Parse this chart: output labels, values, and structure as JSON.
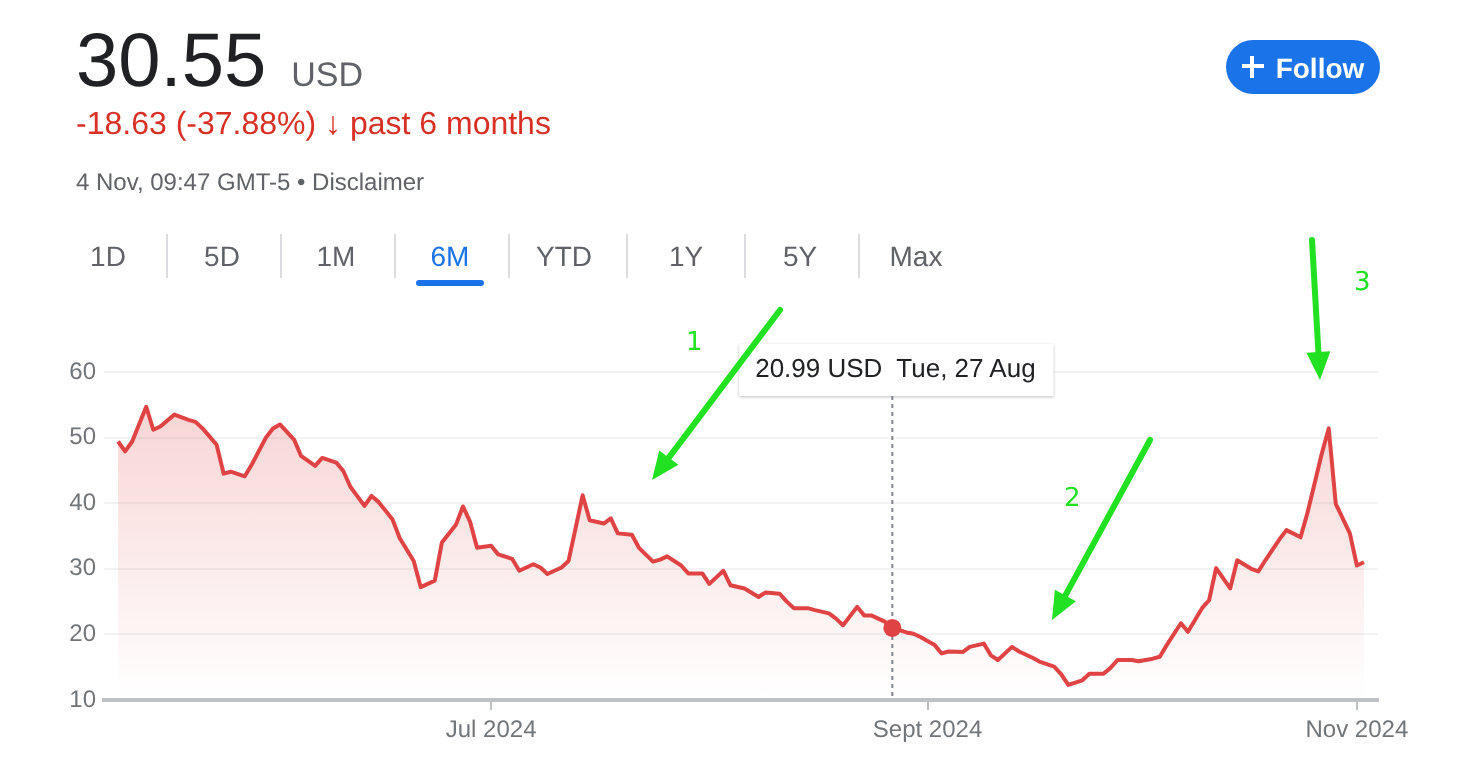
{
  "chart_data": {
    "type": "area",
    "title": "30.55 USD",
    "subtitle": "-18.63 (-37.88%) ↓ past 6 months",
    "color": "#e04343",
    "marker": "none",
    "grid": "y",
    "x": [
      "2024-05-09",
      "2024-05-10",
      "2024-05-11",
      "2024-05-13",
      "2024-05-14",
      "2024-05-15",
      "2024-05-17",
      "2024-05-19",
      "2024-05-20",
      "2024-05-21",
      "2024-05-23",
      "2024-05-24",
      "2024-05-25",
      "2024-05-27",
      "2024-05-28",
      "2024-05-30",
      "2024-05-31",
      "2024-06-01",
      "2024-06-03",
      "2024-06-04",
      "2024-06-06",
      "2024-06-07",
      "2024-06-09",
      "2024-06-10",
      "2024-06-11",
      "2024-06-13",
      "2024-06-14",
      "2024-06-15",
      "2024-06-17",
      "2024-06-18",
      "2024-06-20",
      "2024-06-21",
      "2024-06-23",
      "2024-06-24",
      "2024-06-26",
      "2024-06-27",
      "2024-06-28",
      "2024-06-29",
      "2024-07-01",
      "2024-07-02",
      "2024-07-04",
      "2024-07-05",
      "2024-07-07",
      "2024-07-08",
      "2024-07-09",
      "2024-07-11",
      "2024-07-12",
      "2024-07-14",
      "2024-07-15",
      "2024-07-17",
      "2024-07-18",
      "2024-07-19",
      "2024-07-21",
      "2024-07-22",
      "2024-07-24",
      "2024-07-25",
      "2024-07-26",
      "2024-07-28",
      "2024-07-29",
      "2024-07-31",
      "2024-08-01",
      "2024-08-03",
      "2024-08-04",
      "2024-08-06",
      "2024-08-08",
      "2024-08-09",
      "2024-08-11",
      "2024-08-12",
      "2024-08-13",
      "2024-08-15",
      "2024-08-16",
      "2024-08-18",
      "2024-08-19",
      "2024-08-20",
      "2024-08-22",
      "2024-08-23",
      "2024-08-24",
      "2024-08-26",
      "2024-08-27",
      "2024-08-29",
      "2024-08-30",
      "2024-08-31",
      "2024-09-02",
      "2024-09-03",
      "2024-09-04",
      "2024-09-06",
      "2024-09-07",
      "2024-09-09",
      "2024-09-10",
      "2024-09-11",
      "2024-09-13",
      "2024-09-14",
      "2024-09-16",
      "2024-09-17",
      "2024-09-19",
      "2024-09-20",
      "2024-09-21",
      "2024-09-23",
      "2024-09-24",
      "2024-09-26",
      "2024-09-27",
      "2024-09-28",
      "2024-09-30",
      "2024-10-01",
      "2024-10-03",
      "2024-10-04",
      "2024-10-05",
      "2024-10-07",
      "2024-10-08",
      "2024-10-10",
      "2024-10-11",
      "2024-10-12",
      "2024-10-14",
      "2024-10-15",
      "2024-10-17",
      "2024-10-18",
      "2024-10-19",
      "2024-10-21",
      "2024-10-22",
      "2024-10-24",
      "2024-10-25",
      "2024-10-27",
      "2024-10-28",
      "2024-10-29",
      "2024-10-31",
      "2024-11-01",
      "2024-11-02"
    ],
    "values": [
      49.4,
      47.9,
      49.4,
      54.7,
      51.2,
      51.7,
      53.5,
      52.7,
      52.4,
      51.4,
      48.9,
      44.5,
      44.8,
      44.1,
      45.9,
      50,
      51.4,
      52,
      49.7,
      47.2,
      45.7,
      46.9,
      46.2,
      44.9,
      42.5,
      39.6,
      41.1,
      40.2,
      37.5,
      34.7,
      31.2,
      27.2,
      28.2,
      34,
      36.7,
      39.5,
      37.2,
      33.2,
      33.5,
      32.2,
      31.5,
      29.7,
      30.7,
      30.2,
      29.2,
      30.2,
      31.2,
      41.2,
      37.4,
      36.9,
      37.7,
      35.4,
      35.2,
      33.2,
      31.1,
      31.4,
      31.9,
      30.5,
      29.3,
      29.3,
      27.7,
      29.7,
      27.5,
      27,
      25.7,
      26.4,
      26.2,
      25,
      24,
      24,
      23.7,
      23.2,
      22.4,
      21.4,
      24.2,
      22.9,
      22.9,
      21.9,
      20.99,
      20.3,
      20.1,
      19.6,
      18.4,
      17.1,
      17.4,
      17.3,
      18.1,
      18.6,
      16.8,
      16.1,
      18.1,
      17.4,
      16.4,
      15.8,
      15.1,
      13.9,
      12.3,
      13,
      14,
      14,
      14.9,
      16.1,
      16.1,
      15.9,
      16.3,
      16.6,
      18.4,
      21.7,
      20.4,
      24,
      25.2,
      30.1,
      27,
      31.3,
      30,
      29.6,
      31.3,
      34.5,
      35.9,
      34.8,
      38.6,
      47.5,
      51.4,
      39.9,
      35.4,
      30.5,
      31
    ],
    "xlim": [
      "2024-05-07",
      "2024-11-04"
    ],
    "xticks": [
      {
        "value": "2024-07-01",
        "label": "Jul 2024"
      },
      {
        "value": "2024-09-01",
        "label": "Sept 2024"
      },
      {
        "value": "2024-11-01",
        "label": "Nov 2024"
      }
    ],
    "ylim": [
      10,
      60
    ],
    "yticks": [
      10,
      20,
      30,
      40,
      50,
      60
    ],
    "ref_lines": [
      {
        "axis": "x",
        "value": "2024-08-27",
        "label": "20.99 USD  Tue, 27 Aug",
        "color": "#80868b",
        "line_style": "dotted"
      }
    ],
    "annotations": [
      "4 Nov, 09:47 GMT-5 • Disclaimer",
      "1D",
      "5D",
      "1M",
      "6M",
      "YTD",
      "1Y",
      "5Y",
      "Max",
      "Follow",
      "1",
      "2",
      "3"
    ]
  }
}
